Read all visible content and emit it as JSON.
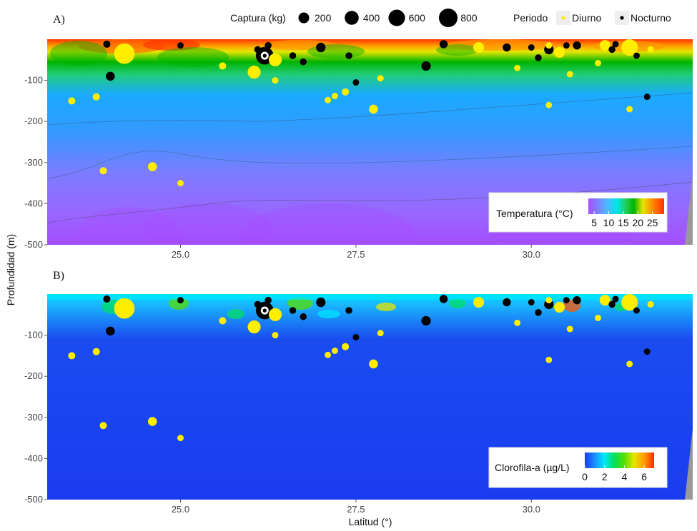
{
  "figure": {
    "y_axis_title": "Profundidad (m)",
    "x_axis_title": "Latitud (°)"
  },
  "legend": {
    "size_title": "Captura (kg)",
    "size_levels": [
      200,
      400,
      600,
      800
    ],
    "size_labels": [
      "200",
      "400",
      "600",
      "800"
    ],
    "color_title": "Periodo",
    "periods": [
      {
        "label": "Diurno",
        "color": "#ffee00"
      },
      {
        "label": "Nocturno",
        "color": "#000000"
      }
    ]
  },
  "chart_data": [
    {
      "type": "heatmap",
      "panel": "A)",
      "variable": "Temperatura (°C)",
      "colorbar": {
        "title": "Temperatura (°C)",
        "ticks": [
          5,
          10,
          15,
          20,
          25
        ],
        "tick_labels": [
          "5",
          "10",
          "15",
          "20",
          "25"
        ],
        "range": [
          3,
          29
        ],
        "colors": [
          "#a64dff",
          "#8080ff",
          "#4db8ff",
          "#00e6e6",
          "#22cc55",
          "#00b300",
          "#e6e600",
          "#ff8000",
          "#ff3300"
        ]
      },
      "xlim": [
        23.1,
        32.3
      ],
      "ylim": [
        -500,
        0
      ],
      "x_ticks": [
        25.0,
        27.5,
        30.0
      ],
      "x_tick_labels": [
        "25.0",
        "27.5",
        "30.0"
      ],
      "y_ticks": [
        -100,
        -200,
        -300,
        -400,
        -500
      ],
      "y_tick_labels": [
        "-100",
        "-200",
        "-300",
        "-400",
        "-500"
      ]
    },
    {
      "type": "heatmap",
      "panel": "B)",
      "variable": "Clorofila-a (µg/L)",
      "colorbar": {
        "title": "Clorofila-a (µg/L)",
        "ticks": [
          0,
          2,
          4,
          6
        ],
        "tick_labels": [
          "0",
          "2",
          "4",
          "6"
        ],
        "range": [
          0,
          7
        ],
        "colors": [
          "#1a3cf0",
          "#1a8cff",
          "#00e6ff",
          "#00e060",
          "#55dd00",
          "#e6e600",
          "#ff9900",
          "#ff2b00"
        ]
      },
      "xlim": [
        23.1,
        32.3
      ],
      "ylim": [
        -500,
        0
      ],
      "x_ticks": [
        25.0,
        27.5,
        30.0
      ],
      "x_tick_labels": [
        "25.0",
        "27.5",
        "30.0"
      ],
      "y_ticks": [
        -100,
        -200,
        -300,
        -400,
        -500
      ],
      "y_tick_labels": [
        "-100",
        "-200",
        "-300",
        "-400",
        "-500"
      ]
    }
  ],
  "catch_points": [
    {
      "lat": 23.95,
      "depth": -12,
      "catch_kg": 60,
      "period": "Nocturno"
    },
    {
      "lat": 24.0,
      "depth": -90,
      "catch_kg": 120,
      "period": "Nocturno"
    },
    {
      "lat": 24.2,
      "depth": -35,
      "catch_kg": 1000,
      "period": "Diurno"
    },
    {
      "lat": 23.45,
      "depth": -150,
      "catch_kg": 60,
      "period": "Diurno"
    },
    {
      "lat": 23.8,
      "depth": -140,
      "catch_kg": 60,
      "period": "Diurno"
    },
    {
      "lat": 23.9,
      "depth": -320,
      "catch_kg": 60,
      "period": "Diurno"
    },
    {
      "lat": 24.6,
      "depth": -310,
      "catch_kg": 120,
      "period": "Diurno"
    },
    {
      "lat": 25.0,
      "depth": -350,
      "catch_kg": 40,
      "period": "Diurno"
    },
    {
      "lat": 25.0,
      "depth": -15,
      "catch_kg": 40,
      "period": "Nocturno"
    },
    {
      "lat": 25.6,
      "depth": -65,
      "catch_kg": 60,
      "period": "Diurno"
    },
    {
      "lat": 26.05,
      "depth": -80,
      "catch_kg": 330,
      "period": "Diurno"
    },
    {
      "lat": 26.1,
      "depth": -25,
      "catch_kg": 50,
      "period": "Nocturno"
    },
    {
      "lat": 26.2,
      "depth": -40,
      "catch_kg": 700,
      "period": "Nocturno"
    },
    {
      "lat": 26.25,
      "depth": -15,
      "catch_kg": 50,
      "period": "Nocturno"
    },
    {
      "lat": 26.35,
      "depth": -50,
      "catch_kg": 330,
      "period": "Diurno"
    },
    {
      "lat": 26.35,
      "depth": -100,
      "catch_kg": 40,
      "period": "Diurno"
    },
    {
      "lat": 26.6,
      "depth": -40,
      "catch_kg": 50,
      "period": "Nocturno"
    },
    {
      "lat": 26.75,
      "depth": -55,
      "catch_kg": 50,
      "period": "Nocturno"
    },
    {
      "lat": 27.0,
      "depth": -20,
      "catch_kg": 140,
      "period": "Nocturno"
    },
    {
      "lat": 27.4,
      "depth": -40,
      "catch_kg": 50,
      "period": "Nocturno"
    },
    {
      "lat": 27.1,
      "depth": -148,
      "catch_kg": 40,
      "period": "Diurno"
    },
    {
      "lat": 27.2,
      "depth": -138,
      "catch_kg": 40,
      "period": "Diurno"
    },
    {
      "lat": 27.35,
      "depth": -128,
      "catch_kg": 60,
      "period": "Diurno"
    },
    {
      "lat": 27.5,
      "depth": -105,
      "catch_kg": 40,
      "period": "Nocturno"
    },
    {
      "lat": 27.75,
      "depth": -170,
      "catch_kg": 120,
      "period": "Diurno"
    },
    {
      "lat": 27.85,
      "depth": -95,
      "catch_kg": 40,
      "period": "Diurno"
    },
    {
      "lat": 28.5,
      "depth": -65,
      "catch_kg": 140,
      "period": "Nocturno"
    },
    {
      "lat": 28.75,
      "depth": -12,
      "catch_kg": 90,
      "period": "Nocturno"
    },
    {
      "lat": 29.25,
      "depth": -20,
      "catch_kg": 200,
      "period": "Diurno"
    },
    {
      "lat": 29.65,
      "depth": -20,
      "catch_kg": 90,
      "period": "Nocturno"
    },
    {
      "lat": 29.8,
      "depth": -70,
      "catch_kg": 40,
      "period": "Diurno"
    },
    {
      "lat": 30.0,
      "depth": -20,
      "catch_kg": 40,
      "period": "Nocturno"
    },
    {
      "lat": 30.1,
      "depth": -45,
      "catch_kg": 50,
      "period": "Nocturno"
    },
    {
      "lat": 30.25,
      "depth": -25,
      "catch_kg": 140,
      "period": "Nocturno"
    },
    {
      "lat": 30.4,
      "depth": -32,
      "catch_kg": 200,
      "period": "Diurno"
    },
    {
      "lat": 30.25,
      "depth": -160,
      "catch_kg": 40,
      "period": "Diurno"
    },
    {
      "lat": 30.25,
      "depth": -15,
      "catch_kg": 40,
      "period": "Diurno"
    },
    {
      "lat": 30.5,
      "depth": -15,
      "catch_kg": 40,
      "period": "Nocturno"
    },
    {
      "lat": 30.55,
      "depth": -85,
      "catch_kg": 40,
      "period": "Diurno"
    },
    {
      "lat": 30.65,
      "depth": -15,
      "catch_kg": 90,
      "period": "Nocturno"
    },
    {
      "lat": 30.95,
      "depth": -58,
      "catch_kg": 40,
      "period": "Diurno"
    },
    {
      "lat": 31.05,
      "depth": -15,
      "catch_kg": 200,
      "period": "Diurno"
    },
    {
      "lat": 31.15,
      "depth": -25,
      "catch_kg": 50,
      "period": "Nocturno"
    },
    {
      "lat": 31.2,
      "depth": -12,
      "catch_kg": 40,
      "period": "Nocturno"
    },
    {
      "lat": 31.4,
      "depth": -20,
      "catch_kg": 600,
      "period": "Diurno"
    },
    {
      "lat": 31.4,
      "depth": -170,
      "catch_kg": 40,
      "period": "Diurno"
    },
    {
      "lat": 31.5,
      "depth": -40,
      "catch_kg": 40,
      "period": "Nocturno"
    },
    {
      "lat": 31.65,
      "depth": -140,
      "catch_kg": 40,
      "period": "Nocturno"
    },
    {
      "lat": 31.7,
      "depth": -25,
      "catch_kg": 40,
      "period": "Diurno"
    }
  ]
}
